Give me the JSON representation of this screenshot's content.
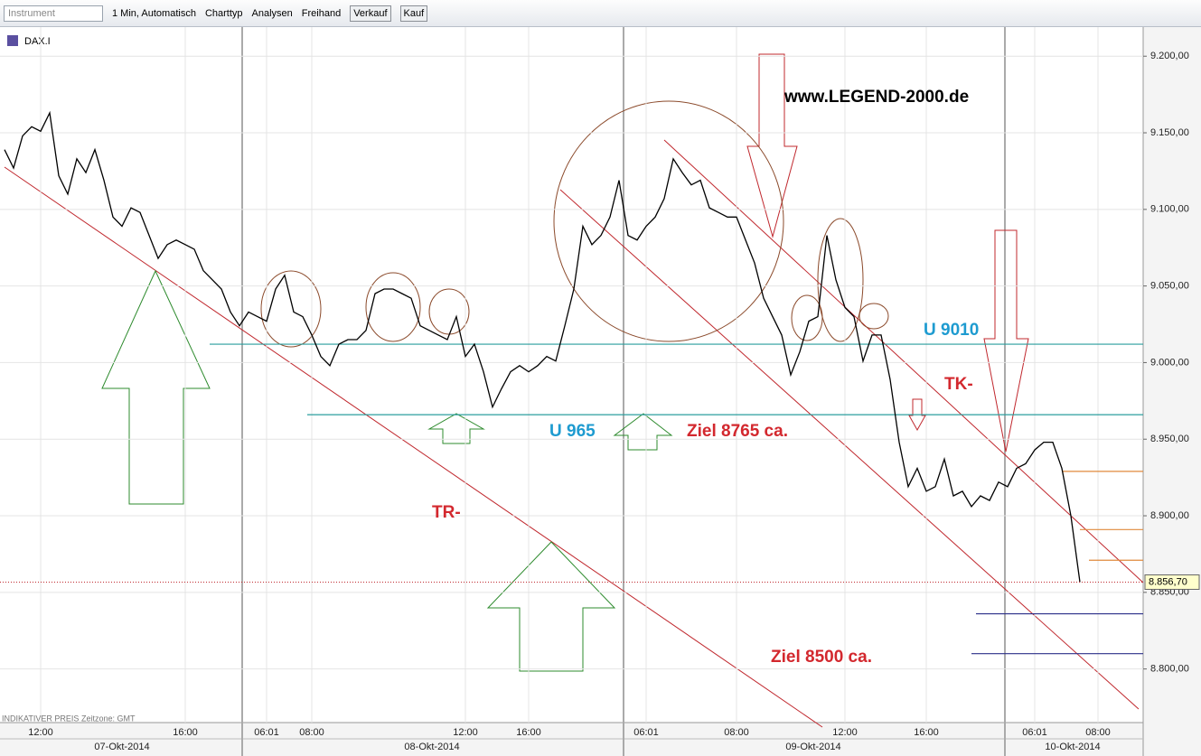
{
  "toolbar": {
    "instrument": "Instrument",
    "interval": "1 Min, Automatisch",
    "chart_type": "Charttyp",
    "analyses": "Analysen",
    "freehand": "Freihand",
    "sell": "Verkauf",
    "buy": "Kauf"
  },
  "chart_data": {
    "type": "line",
    "symbol": "DAX.I",
    "color": "#000000",
    "categories": [
      null,
      null,
      null,
      null,
      "12:00",
      null,
      null,
      null,
      null,
      null,
      null,
      null,
      null,
      null,
      null,
      null,
      null,
      null,
      null,
      null,
      "16:00",
      null,
      null,
      null,
      null,
      null,
      null,
      null,
      null,
      "06:01",
      null,
      null,
      null,
      null,
      "08:00",
      null,
      null,
      null,
      null,
      null,
      null,
      null,
      null,
      null,
      null,
      null,
      null,
      null,
      null,
      null,
      null,
      "12:00",
      null,
      null,
      null,
      null,
      null,
      null,
      "16:00",
      null,
      null,
      null,
      null,
      null,
      null,
      null,
      null,
      null,
      null,
      null,
      null,
      "06:01",
      null,
      null,
      null,
      null,
      null,
      null,
      null,
      null,
      null,
      "08:00",
      null,
      null,
      null,
      null,
      null,
      null,
      null,
      null,
      null,
      null,
      null,
      "12:00",
      null,
      null,
      null,
      null,
      null,
      null,
      null,
      null,
      "16:00",
      null,
      null,
      null,
      null,
      null,
      null,
      null,
      null,
      null,
      null,
      null,
      "06:01",
      null,
      null,
      null,
      null,
      null,
      null,
      "08:00",
      null,
      null,
      null,
      null
    ],
    "values": [
      9139,
      9127,
      9148,
      9154,
      9151,
      9163,
      9122,
      9110,
      9133,
      9124,
      9139,
      9119,
      9095,
      9089,
      9101,
      9098,
      9083,
      9068,
      9077,
      9080,
      9077,
      9074,
      9060,
      9054,
      9048,
      9033,
      9024,
      9033,
      9030,
      9027,
      9048,
      9057,
      9033,
      9030,
      9018,
      9004,
      8998,
      9012,
      9015,
      9015,
      9021,
      9045,
      9048,
      9048,
      9045,
      9042,
      9024,
      9021,
      9018,
      9015,
      9030,
      9004,
      9012,
      8994,
      8971,
      8983,
      8994,
      8998,
      8994,
      8998,
      9004,
      9001,
      9024,
      9048,
      9089,
      9077,
      9083,
      9095,
      9119,
      9083,
      9080,
      9089,
      9095,
      9107,
      9133,
      9124,
      9116,
      9119,
      9101,
      9098,
      9095,
      9095,
      9080,
      9065,
      9042,
      9030,
      9018,
      8992,
      9007,
      9027,
      9030,
      9083,
      9054,
      9036,
      9030,
      9001,
      9018,
      9018,
      8989,
      8948,
      8919,
      8931,
      8916,
      8919,
      8937,
      8913,
      8916,
      8906,
      8913,
      8910,
      8922,
      8919,
      8931,
      8934,
      8943,
      8948,
      8948,
      8931,
      8900,
      8856.7,
      null,
      null,
      null,
      null,
      null,
      null
    ],
    "dates": [
      "07-Okt-2014",
      "08-Okt-2014",
      "09-Okt-2014",
      "10-Okt-2014"
    ],
    "ylim": [
      8765,
      9219
    ],
    "yticks": [
      {
        "value": 8800,
        "label": "8.800,00"
      },
      {
        "value": 8850,
        "label": "8.850,00"
      },
      {
        "value": 8900,
        "label": "8.900,00"
      },
      {
        "value": 8950,
        "label": "8.950,00"
      },
      {
        "value": 9000,
        "label": "9.000,00"
      },
      {
        "value": 9050,
        "label": "9.050,00"
      },
      {
        "value": 9100,
        "label": "9.100,00"
      },
      {
        "value": 9150,
        "label": "9.150,00"
      },
      {
        "value": 9200,
        "label": "9.200,00"
      }
    ],
    "grid": true,
    "last_price": {
      "value": 8856.7,
      "label": "8.856,70"
    },
    "levels": [
      {
        "value": 9012,
        "color": "#2a9d9d"
      },
      {
        "value": 8966,
        "color": "#2a9d9d"
      },
      {
        "value": 8929,
        "color": "#e08a3c"
      },
      {
        "value": 8891,
        "color": "#e08a3c"
      },
      {
        "value": 8871,
        "color": "#e08a3c"
      },
      {
        "value": 8836,
        "color": "#2b2f8a"
      },
      {
        "value": 8810,
        "color": "#2b2f8a"
      }
    ],
    "annotations": [
      "www.LEGEND-2000.de",
      "U 9010",
      "TK-",
      "U 965",
      "Ziel 8765 ca.",
      "TR-",
      "Ziel 8500 ca."
    ],
    "footer": [
      "INDIKATIVER PREIS",
      "Zeitzone: GMT"
    ]
  }
}
